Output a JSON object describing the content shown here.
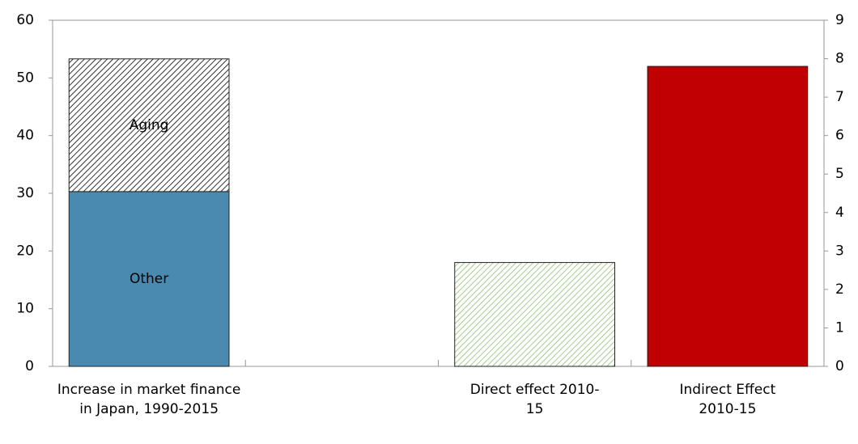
{
  "chart_data": {
    "type": "bar",
    "categories": [
      "Increase in market finance in Japan, 1990-2015",
      null,
      "Direct effect 2010-15",
      "Indirect Effect 2010-15"
    ],
    "series": [
      {
        "name": "Other",
        "color": "#4a8ab0",
        "values": [
          30.3,
          null,
          null,
          null
        ]
      },
      {
        "name": "Aging",
        "color": "#000000",
        "pattern": "hatch",
        "values": [
          23,
          null,
          null,
          null
        ]
      },
      {
        "color": "#8fbf70",
        "pattern": "hatch",
        "axis": "y2",
        "values": [
          null,
          null,
          2.7,
          null
        ]
      },
      {
        "color": "#c00000",
        "axis": "y2",
        "values": [
          null,
          null,
          null,
          7.8
        ]
      }
    ],
    "ylim": [
      0,
      60
    ],
    "yticks": [
      0,
      10,
      20,
      30,
      40,
      50,
      60
    ],
    "y2lim": [
      0,
      9
    ],
    "y2ticks": [
      0,
      1,
      2,
      3,
      4,
      5,
      6,
      7,
      8,
      9
    ]
  }
}
